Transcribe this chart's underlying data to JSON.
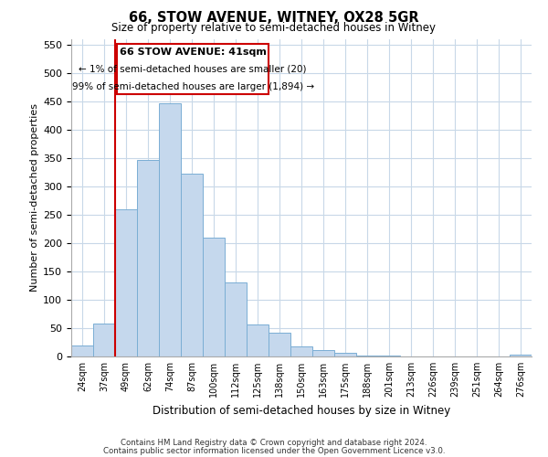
{
  "title": "66, STOW AVENUE, WITNEY, OX28 5GR",
  "subtitle": "Size of property relative to semi-detached houses in Witney",
  "xlabel": "Distribution of semi-detached houses by size in Witney",
  "ylabel": "Number of semi-detached properties",
  "bar_labels": [
    "24sqm",
    "37sqm",
    "49sqm",
    "62sqm",
    "74sqm",
    "87sqm",
    "100sqm",
    "112sqm",
    "125sqm",
    "138sqm",
    "150sqm",
    "163sqm",
    "175sqm",
    "188sqm",
    "201sqm",
    "213sqm",
    "226sqm",
    "239sqm",
    "251sqm",
    "264sqm",
    "276sqm"
  ],
  "bar_values": [
    20,
    58,
    260,
    347,
    447,
    323,
    209,
    130,
    57,
    42,
    18,
    12,
    7,
    2,
    1,
    0,
    0,
    0,
    0,
    0,
    3
  ],
  "bar_color": "#c5d8ed",
  "bar_edge_color": "#7aaed4",
  "annotation_title": "66 STOW AVENUE: 41sqm",
  "annotation_line1": "← 1% of semi-detached houses are smaller (20)",
  "annotation_line2": "99% of semi-detached houses are larger (1,894) →",
  "subject_line_color": "#cc0000",
  "annotation_box_color": "#ffffff",
  "annotation_box_edge": "#cc0000",
  "ylim": [
    0,
    560
  ],
  "yticks": [
    0,
    50,
    100,
    150,
    200,
    250,
    300,
    350,
    400,
    450,
    500,
    550
  ],
  "footer_line1": "Contains HM Land Registry data © Crown copyright and database right 2024.",
  "footer_line2": "Contains public sector information licensed under the Open Government Licence v3.0.",
  "background_color": "#ffffff",
  "grid_color": "#c8d8e8"
}
